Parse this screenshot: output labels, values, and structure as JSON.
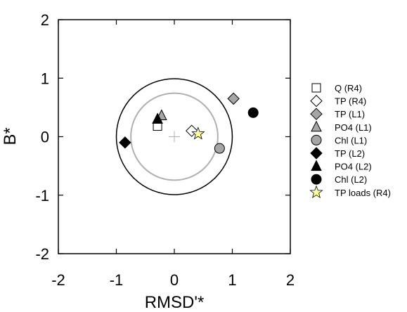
{
  "chart_data": {
    "type": "scatter",
    "title": "",
    "xlabel": "RMSD'*",
    "ylabel": "B*",
    "xlim": [
      -2,
      2
    ],
    "ylim": [
      -2,
      2
    ],
    "xticks": [
      -2,
      -1,
      0,
      1,
      2
    ],
    "yticks": [
      -2,
      -1,
      0,
      1,
      2
    ],
    "x_tick_labels": [
      "-2",
      "-1",
      "0",
      "1",
      "2"
    ],
    "y_tick_labels": [
      "-2",
      "-1",
      "0",
      "1",
      "2"
    ],
    "grid": false,
    "legend_position": "right",
    "reference_circles": [
      {
        "radius": 1.0,
        "color": "#000000"
      },
      {
        "radius": 0.75,
        "color": "#b0b0b0"
      }
    ],
    "origin_marker": {
      "x": 0,
      "y": 0,
      "symbol": "cross",
      "color": "#b0b0b0"
    },
    "series": [
      {
        "name": "Q (R4)",
        "marker": "square",
        "fill": "#ffffff",
        "x": -0.29,
        "y": 0.18
      },
      {
        "name": "TP (R4)",
        "marker": "diamond",
        "fill": "#ffffff",
        "x": 0.3,
        "y": 0.1
      },
      {
        "name": "TP (L1)",
        "marker": "diamond",
        "fill": "#a6a6a6",
        "x": 1.02,
        "y": 0.65
      },
      {
        "name": "PO4 (L1)",
        "marker": "triangle",
        "fill": "#a6a6a6",
        "x": -0.22,
        "y": 0.36
      },
      {
        "name": "Chl (L1)",
        "marker": "circle",
        "fill": "#a6a6a6",
        "x": 0.78,
        "y": -0.2
      },
      {
        "name": "TP (L2)",
        "marker": "diamond",
        "fill": "#000000",
        "x": -0.85,
        "y": -0.1
      },
      {
        "name": "PO4 (L2)",
        "marker": "triangle",
        "fill": "#000000",
        "x": -0.29,
        "y": 0.3
      },
      {
        "name": "Chl (L2)",
        "marker": "circle",
        "fill": "#000000",
        "x": 1.36,
        "y": 0.41
      },
      {
        "name": "TP loads (R4)",
        "marker": "star",
        "fill": "#ffff99",
        "x": 0.41,
        "y": 0.05
      }
    ]
  }
}
